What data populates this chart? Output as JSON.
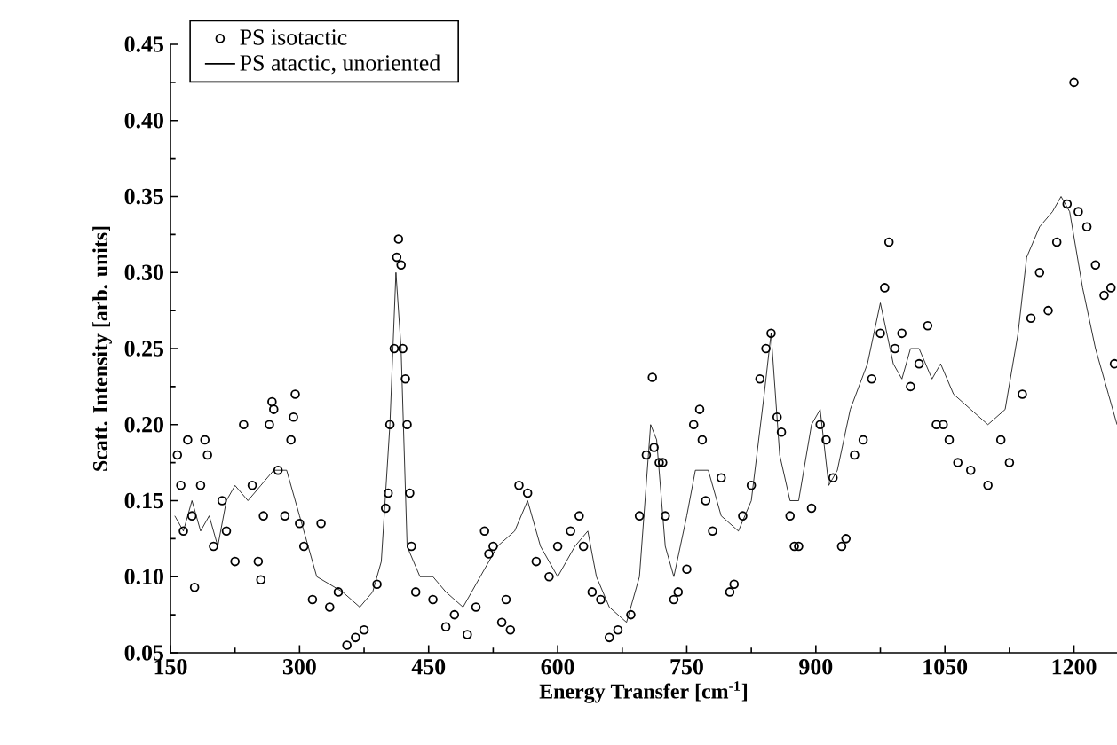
{
  "chart_data": {
    "type": "scatter",
    "xlabel": "Energy Transfer [cm$^{-1}$]",
    "ylabel": "Scatt. Intensity [arb. units]",
    "xlim": [
      150,
      1250
    ],
    "xticks": [
      150,
      300,
      450,
      600,
      750,
      900,
      1050,
      1200
    ],
    "ylim": [
      0.05,
      0.45
    ],
    "yticks": [
      0.05,
      {
        "value": 0.1,
        "label": "0.10"
      },
      0.15,
      {
        "value": 0.2,
        "label": "0.20"
      },
      0.25,
      {
        "value": 0.3,
        "label": "0.30"
      },
      0.35,
      {
        "value": 0.4,
        "label": "0.40"
      },
      0.45
    ],
    "legend": "top left",
    "series": [
      {
        "name": "PS isotactic",
        "marker": "circle",
        "color": "#000000",
        "x": [
          158,
          162,
          165,
          170,
          175,
          178,
          185,
          190,
          193,
          200,
          210,
          215,
          225,
          235,
          245,
          252,
          255,
          258,
          265,
          268,
          270,
          275,
          283,
          290,
          293,
          295,
          300,
          305,
          315,
          325,
          335,
          345,
          355,
          365,
          375,
          390,
          400,
          403,
          405,
          410,
          413,
          415,
          418,
          420,
          423,
          425,
          428,
          430,
          435,
          455,
          470,
          480,
          495,
          505,
          515,
          520,
          525,
          535,
          540,
          545,
          555,
          565,
          575,
          590,
          600,
          615,
          625,
          630,
          640,
          650,
          660,
          670,
          685,
          695,
          703,
          710,
          712,
          718,
          722,
          725,
          735,
          740,
          750,
          758,
          765,
          768,
          772,
          780,
          790,
          800,
          805,
          815,
          825,
          835,
          842,
          848,
          855,
          860,
          870,
          875,
          880,
          895,
          905,
          912,
          920,
          930,
          935,
          945,
          955,
          965,
          975,
          980,
          985,
          992,
          1000,
          1010,
          1020,
          1030,
          1040,
          1048,
          1055,
          1065,
          1080,
          1100,
          1115,
          1125,
          1140,
          1150,
          1160,
          1170,
          1180,
          1192,
          1200,
          1205,
          1215,
          1225,
          1235,
          1243,
          1247
        ],
        "values": [
          0.18,
          0.16,
          0.13,
          0.19,
          0.14,
          0.093,
          0.16,
          0.19,
          0.18,
          0.12,
          0.15,
          0.13,
          0.11,
          0.2,
          0.16,
          0.11,
          0.098,
          0.14,
          0.2,
          0.215,
          0.21,
          0.17,
          0.14,
          0.19,
          0.205,
          0.22,
          0.135,
          0.12,
          0.085,
          0.135,
          0.08,
          0.09,
          0.055,
          0.06,
          0.065,
          0.095,
          0.145,
          0.155,
          0.2,
          0.25,
          0.31,
          0.322,
          0.305,
          0.25,
          0.23,
          0.2,
          0.155,
          0.12,
          0.09,
          0.085,
          0.067,
          0.075,
          0.062,
          0.08,
          0.13,
          0.115,
          0.12,
          0.07,
          0.085,
          0.065,
          0.16,
          0.155,
          0.11,
          0.1,
          0.12,
          0.13,
          0.14,
          0.12,
          0.09,
          0.085,
          0.06,
          0.065,
          0.075,
          0.14,
          0.18,
          0.231,
          0.185,
          0.175,
          0.175,
          0.14,
          0.085,
          0.09,
          0.105,
          0.2,
          0.21,
          0.19,
          0.15,
          0.13,
          0.165,
          0.09,
          0.095,
          0.14,
          0.16,
          0.23,
          0.25,
          0.26,
          0.205,
          0.195,
          0.14,
          0.12,
          0.12,
          0.145,
          0.2,
          0.19,
          0.165,
          0.12,
          0.125,
          0.18,
          0.19,
          0.23,
          0.26,
          0.29,
          0.32,
          0.25,
          0.26,
          0.225,
          0.24,
          0.265,
          0.2,
          0.2,
          0.19,
          0.175,
          0.17,
          0.16,
          0.19,
          0.175,
          0.22,
          0.27,
          0.3,
          0.275,
          0.32,
          0.345,
          0.425,
          0.34,
          0.33,
          0.305,
          0.285,
          0.29,
          0.24
        ]
      },
      {
        "name": "PS atactic, unoriented",
        "type": "line",
        "marker": "none",
        "line_style": "solid",
        "color": "#000000",
        "x": [
          155,
          165,
          175,
          185,
          195,
          205,
          215,
          225,
          240,
          255,
          270,
          285,
          300,
          320,
          335,
          350,
          370,
          385,
          395,
          405,
          412,
          418,
          425,
          440,
          455,
          470,
          490,
          510,
          530,
          550,
          565,
          580,
          600,
          620,
          635,
          645,
          660,
          680,
          695,
          708,
          715,
          725,
          735,
          750,
          760,
          775,
          790,
          810,
          825,
          840,
          848,
          858,
          870,
          880,
          895,
          905,
          915,
          925,
          940,
          960,
          975,
          990,
          1000,
          1010,
          1020,
          1035,
          1045,
          1060,
          1080,
          1100,
          1120,
          1135,
          1145,
          1160,
          1175,
          1185,
          1195,
          1210,
          1225,
          1240,
          1250
        ],
        "values": [
          0.14,
          0.13,
          0.15,
          0.13,
          0.14,
          0.12,
          0.15,
          0.16,
          0.15,
          0.16,
          0.17,
          0.17,
          0.14,
          0.1,
          0.095,
          0.09,
          0.08,
          0.09,
          0.11,
          0.2,
          0.3,
          0.25,
          0.12,
          0.1,
          0.1,
          0.09,
          0.08,
          0.1,
          0.12,
          0.13,
          0.15,
          0.12,
          0.1,
          0.12,
          0.13,
          0.1,
          0.08,
          0.07,
          0.1,
          0.2,
          0.19,
          0.12,
          0.1,
          0.14,
          0.17,
          0.17,
          0.14,
          0.13,
          0.15,
          0.22,
          0.26,
          0.18,
          0.15,
          0.15,
          0.2,
          0.21,
          0.16,
          0.17,
          0.21,
          0.24,
          0.28,
          0.24,
          0.23,
          0.25,
          0.25,
          0.23,
          0.24,
          0.22,
          0.21,
          0.2,
          0.21,
          0.26,
          0.31,
          0.33,
          0.34,
          0.35,
          0.34,
          0.29,
          0.25,
          0.22,
          0.2
        ]
      }
    ]
  }
}
